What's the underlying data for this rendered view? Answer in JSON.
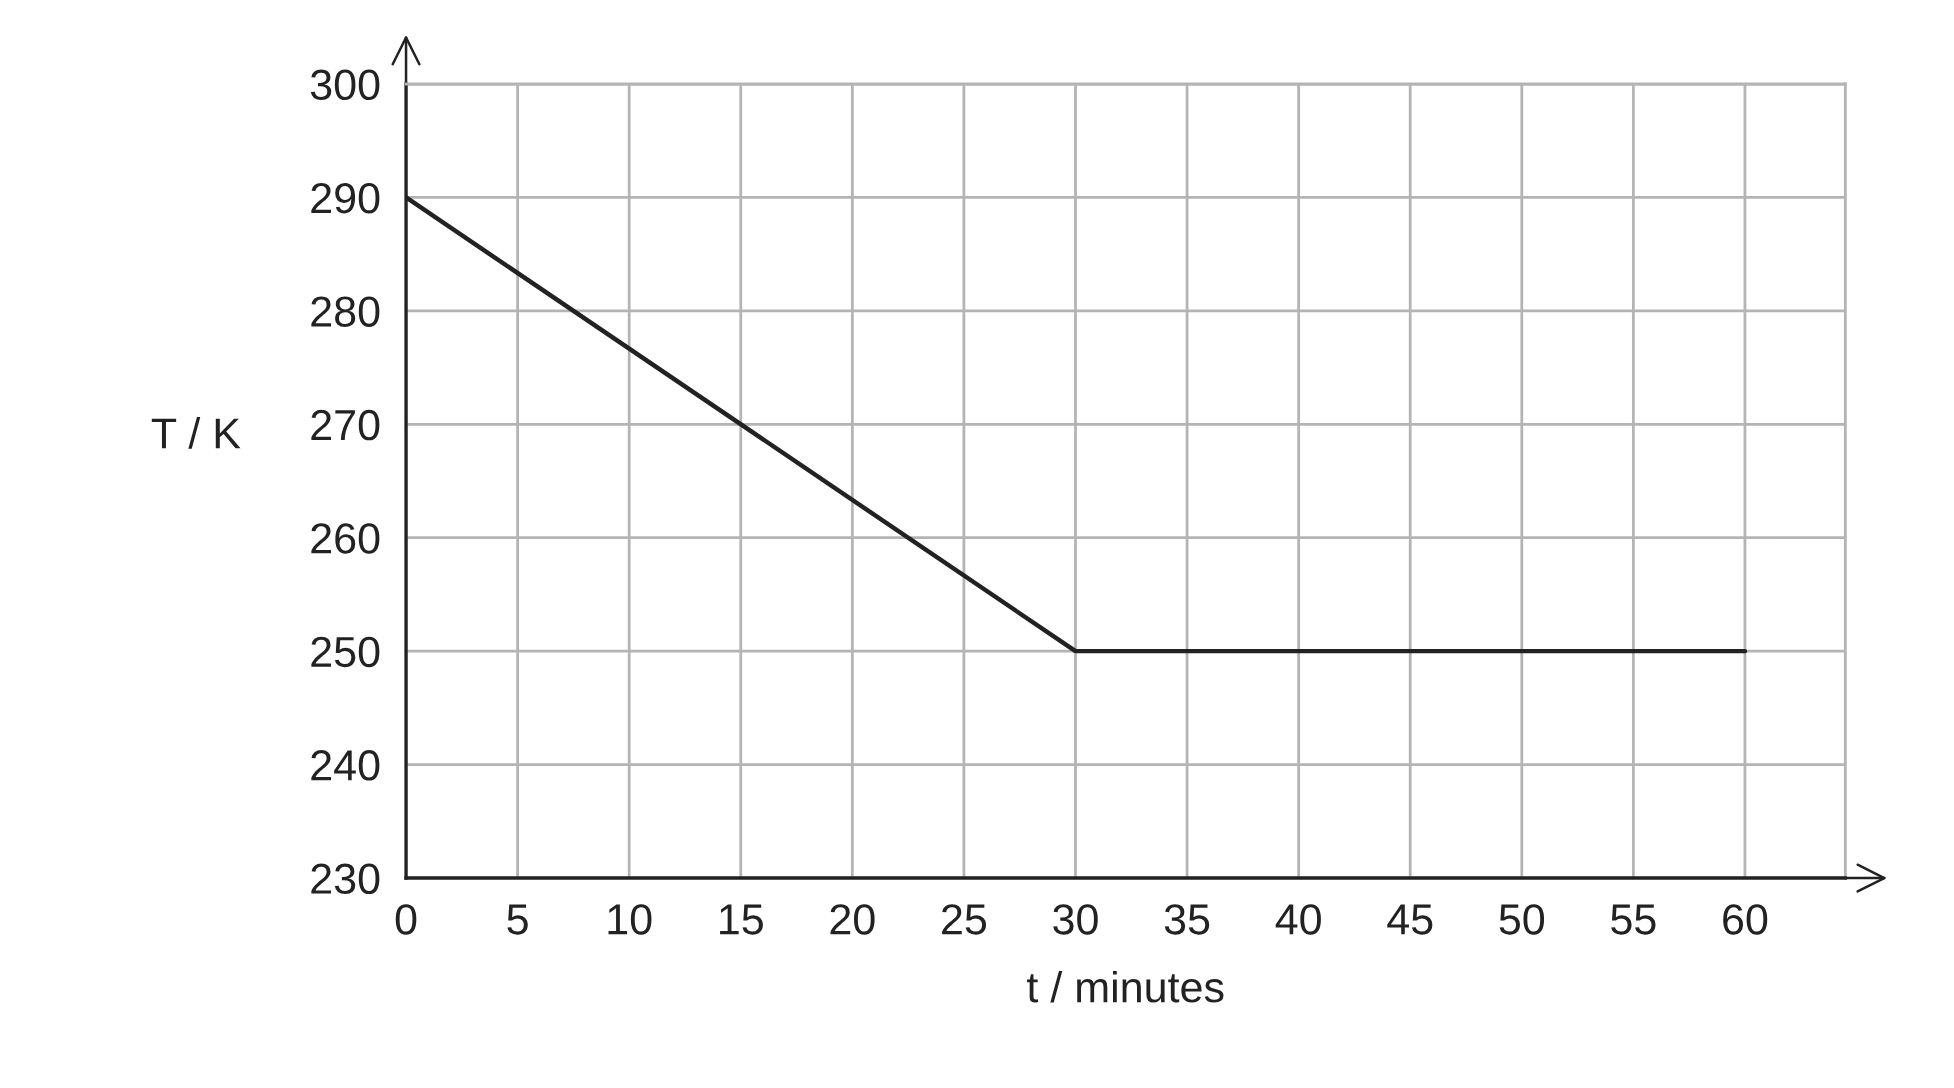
{
  "chart_data": {
    "type": "line",
    "xlabel": "t / minutes",
    "ylabel": "T / K",
    "x": [
      0,
      30,
      60
    ],
    "series": [
      {
        "color": "#222222",
        "values": [
          290,
          250,
          250
        ]
      }
    ],
    "xlim": [
      0,
      64.5
    ],
    "ylim": [
      230,
      300
    ],
    "xticks": [
      0,
      5,
      10,
      15,
      20,
      25,
      30,
      35,
      40,
      45,
      50,
      55,
      60
    ],
    "yticks": [
      230,
      240,
      250,
      260,
      270,
      280,
      290,
      300
    ],
    "grid": true,
    "line_style": "solid"
  }
}
